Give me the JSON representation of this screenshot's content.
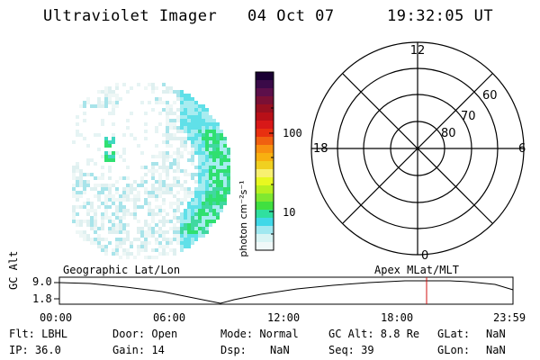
{
  "header": {
    "instrument": "Ultraviolet Imager",
    "date": "04 Oct 07",
    "time": "19:32:05 UT"
  },
  "colorbar": {
    "unit_label": "photon cm⁻²s⁻¹",
    "ticks": [
      "100",
      "10"
    ],
    "colors": [
      "#1a0033",
      "#3a0a48",
      "#5c0f4a",
      "#7a1035",
      "#981020",
      "#b81018",
      "#d81818",
      "#e83010",
      "#f06010",
      "#f89010",
      "#f8b010",
      "#f0d020",
      "#f8f070",
      "#e8f820",
      "#b8f020",
      "#80e830",
      "#40e040",
      "#30e0a0",
      "#40d8e8",
      "#a0e8f0",
      "#d8f4f4",
      "#f0f8f8"
    ]
  },
  "polar_grid": {
    "mlt_labels": [
      "12",
      "18",
      "6",
      "0"
    ],
    "lat_labels": [
      "60",
      "70",
      "80"
    ]
  },
  "timeline": {
    "y_axis_label": "GC Alt",
    "y_ticks": [
      "9.0",
      "1.8"
    ],
    "left_label": "Geographic Lat/Lon",
    "right_label": "Apex  MLat/MLT",
    "x_ticks": [
      "00:00",
      "06:00",
      "12:00",
      "18:00",
      "23:59"
    ],
    "current_time_marker_color": "#d01010"
  },
  "info": {
    "flt": "Flt: LBHL",
    "door": "Door: Open",
    "mode": "Mode: Normal",
    "gcalt": "GC Alt: 8.8 Re",
    "glat_label": "GLat:",
    "glat_value": "NaN",
    "ip": "IP: 36.0",
    "gain": "Gain: 14",
    "dsp_label": "Dsp:",
    "dsp_value": "NaN",
    "seq": "Seq: 39",
    "glon_label": "GLon:",
    "glon_value": "NaN"
  }
}
